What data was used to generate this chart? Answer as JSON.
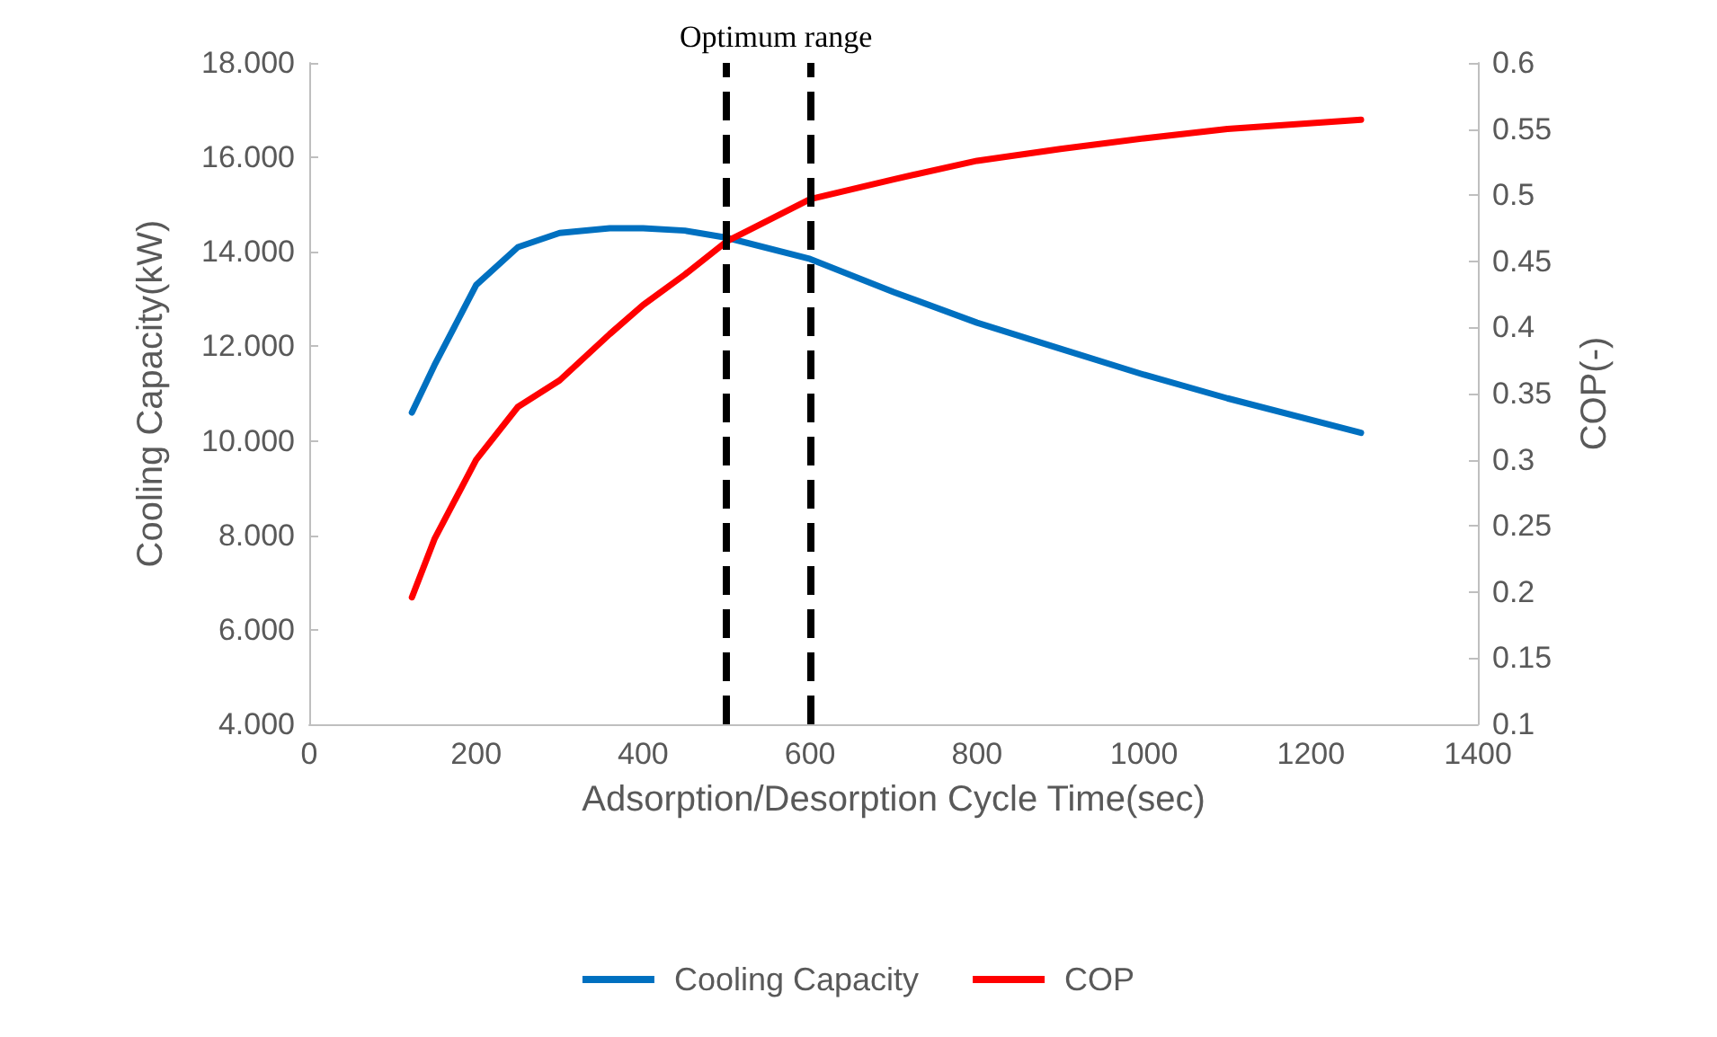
{
  "chart_data": {
    "type": "line",
    "xlabel": "Adsorption/Desorption Cycle Time(sec)",
    "ylabel": "Cooling Capacity(kW)",
    "y2label": "COP(-)",
    "annotations": [
      "Optimum range"
    ],
    "x": [
      123,
      150,
      200,
      250,
      300,
      360,
      400,
      450,
      500,
      600,
      700,
      800,
      900,
      1000,
      1100,
      1260
    ],
    "series": [
      {
        "name": "Cooling Capacity",
        "color": "#0070c0",
        "values": [
          10.6,
          11.6,
          13.3,
          14.1,
          14.4,
          14.5,
          14.5,
          14.45,
          14.3,
          13.85,
          13.15,
          12.5,
          11.95,
          11.4,
          10.9,
          10.17
        ]
      },
      {
        "name": "COP",
        "color": "#ff0000",
        "axis": "y2",
        "values": [
          0.196,
          0.24,
          0.3,
          0.34,
          0.36,
          0.395,
          0.417,
          0.44,
          0.465,
          0.497,
          0.512,
          0.526,
          0.535,
          0.543,
          0.55,
          0.557
        ]
      }
    ],
    "xlim": [
      0,
      1400
    ],
    "xticks": [
      0,
      200,
      400,
      600,
      800,
      1000,
      1200,
      1400
    ],
    "ylim": [
      4,
      18
    ],
    "yticks": [
      {
        "value": 4,
        "label": "4.000"
      },
      {
        "value": 6,
        "label": "6.000"
      },
      {
        "value": 8,
        "label": "8.000"
      },
      {
        "value": 10,
        "label": "10.000"
      },
      {
        "value": 12,
        "label": "12.000"
      },
      {
        "value": 14,
        "label": "14.000"
      },
      {
        "value": 16,
        "label": "16.000"
      },
      {
        "value": 18,
        "label": "18.000"
      }
    ],
    "y2lim": [
      0.1,
      0.6
    ],
    "y2ticks": [
      0.1,
      0.15,
      0.2,
      0.25,
      0.3,
      0.35,
      0.4,
      0.45,
      0.5,
      0.55,
      0.6
    ],
    "ref_lines": [
      {
        "axis": "x",
        "value": 500,
        "color": "#000000",
        "line_style": "dashed"
      },
      {
        "axis": "x",
        "value": 600,
        "color": "#000000",
        "line_style": "dashed"
      }
    ],
    "grid": false,
    "legend": "bottom",
    "marker": "none",
    "line_style": "solid"
  }
}
